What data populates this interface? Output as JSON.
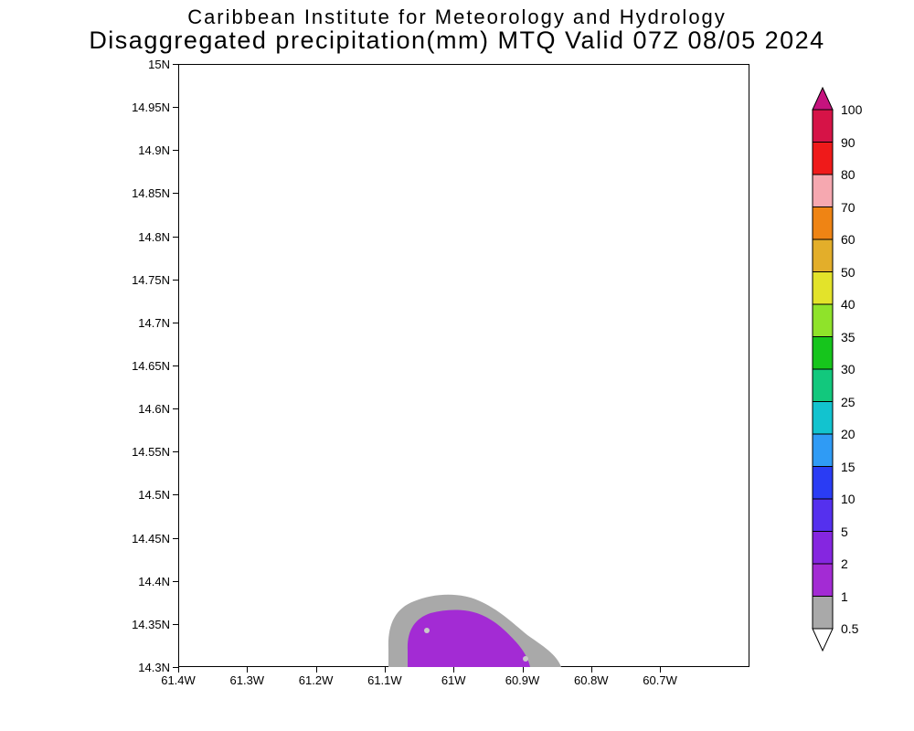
{
  "header": {
    "line1": "Caribbean Institute for Meteorology and Hydrology",
    "line2": "Disaggregated precipitation(mm) MTQ Valid 07Z 08/05 2024"
  },
  "chart_data": {
    "type": "heatmap",
    "subtype": "filled-contour precipitation map (GrADS style)",
    "institution": "Caribbean Institute for Meteorology and Hydrology",
    "title": "Disaggregated precipitation(mm) MTQ Valid 07Z 08/05 2024",
    "region": "MTQ",
    "valid_time": "07Z 08/05 2024",
    "units": "mm",
    "grid": true,
    "legend_position": "right",
    "x_axis": {
      "ticks": [
        "61.4W",
        "61.3W",
        "61.2W",
        "61.1W",
        "61W",
        "60.9W",
        "60.8W",
        "60.7W"
      ],
      "range_deg_west": [
        61.4,
        60.57
      ]
    },
    "y_axis": {
      "ticks": [
        "15N",
        "14.95N",
        "14.9N",
        "14.85N",
        "14.8N",
        "14.75N",
        "14.7N",
        "14.65N",
        "14.6N",
        "14.55N",
        "14.5N",
        "14.45N",
        "14.4N",
        "14.35N",
        "14.3N"
      ],
      "range_deg_north": [
        14.3,
        15.0
      ]
    },
    "colorbar": {
      "labels_top_to_bottom": [
        "100",
        "90",
        "80",
        "70",
        "60",
        "50",
        "40",
        "35",
        "30",
        "25",
        "20",
        "15",
        "10",
        "5",
        "2",
        "1",
        "0.5"
      ],
      "segments_bottom_to_top": [
        {
          "range": "0.5-1",
          "color": "#a9a9a9"
        },
        {
          "range": "1-2",
          "color": "#a32bd4"
        },
        {
          "range": "2-5",
          "color": "#8526e0"
        },
        {
          "range": "5-10",
          "color": "#5530ee"
        },
        {
          "range": "10-15",
          "color": "#2a3cf4"
        },
        {
          "range": "15-20",
          "color": "#2f9bf5"
        },
        {
          "range": "20-25",
          "color": "#12c3cf"
        },
        {
          "range": "25-30",
          "color": "#12c87d"
        },
        {
          "range": "30-35",
          "color": "#16c51c"
        },
        {
          "range": "35-40",
          "color": "#8fe32a"
        },
        {
          "range": "40-50",
          "color": "#e3e32a"
        },
        {
          "range": "50-60",
          "color": "#e3ae2a"
        },
        {
          "range": "60-70",
          "color": "#ef8414"
        },
        {
          "range": "70-80",
          "color": "#f6a8b0"
        },
        {
          "range": "80-90",
          "color": "#ef1a1a"
        },
        {
          "range": "90-100",
          "color": "#d61347"
        }
      ],
      "above_max_color": "#c6137e",
      "below_min_color": "#ffffff"
    },
    "contours": [
      {
        "level_mm": "0.5-1",
        "color": "#a9a9a9",
        "approx_lon_west": [
          61.1,
          60.85
        ],
        "approx_lat_north": [
          14.3,
          14.375
        ]
      },
      {
        "level_mm": "1-2",
        "color": "#a32bd4",
        "approx_lon_west": [
          61.065,
          60.895
        ],
        "approx_lat_north": [
          14.3,
          14.362
        ]
      }
    ]
  }
}
